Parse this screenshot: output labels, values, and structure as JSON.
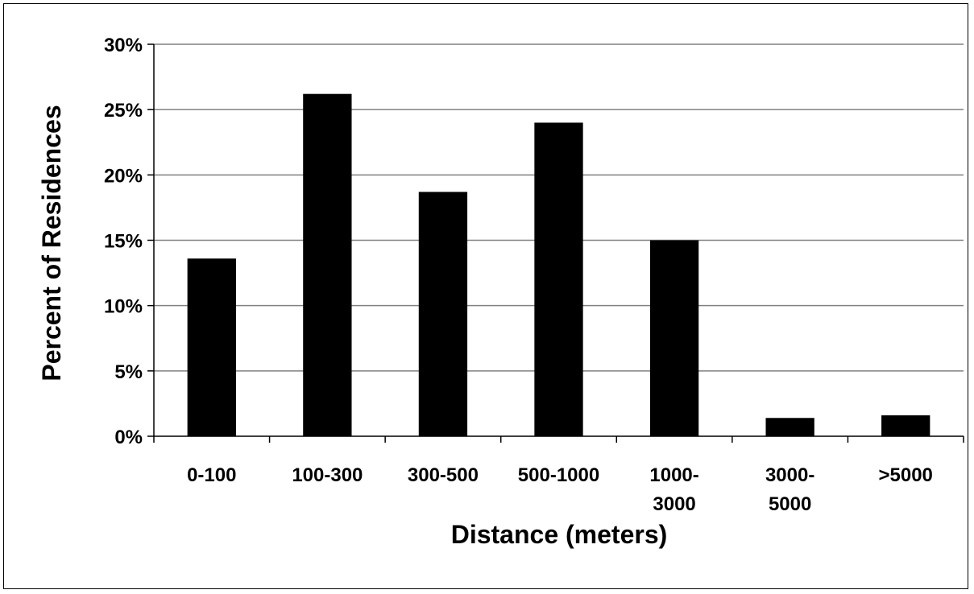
{
  "chart_data": {
    "type": "bar",
    "categories": [
      [
        "0-100"
      ],
      [
        "100-300"
      ],
      [
        "300-500"
      ],
      [
        "500-1000"
      ],
      [
        "1000-",
        "3000"
      ],
      [
        "3000-",
        "5000"
      ],
      [
        ">5000"
      ]
    ],
    "values": [
      13.6,
      26.2,
      18.7,
      24.0,
      15.0,
      1.4,
      1.6
    ],
    "xlabel": "Distance (meters)",
    "ylabel": "Percent of Residences",
    "ylim": [
      0,
      30
    ],
    "yticks": [
      0,
      5,
      10,
      15,
      20,
      25,
      30
    ],
    "ytick_format": "%",
    "grid": true,
    "bar_color": "#000000",
    "grid_color": "#808080"
  }
}
